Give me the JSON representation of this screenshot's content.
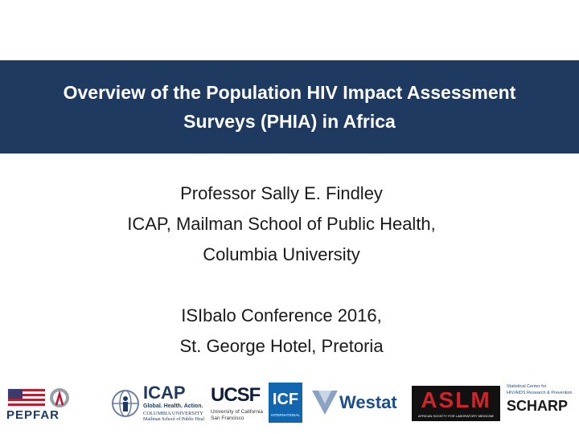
{
  "slide": {
    "title": [
      "Overview of the Population HIV Impact Assessment",
      "Surveys (PHIA) in Africa"
    ],
    "presenter": "Professor Sally E. Findley",
    "affiliation_1": "ICAP, Mailman School of Public Health,",
    "affiliation_2": "Columbia University",
    "event": "ISIbalo Conference 2016,",
    "venue": "St. George Hotel, Pretoria"
  },
  "logos": {
    "pepfar": "PEPFAR",
    "icap": {
      "name": "ICAP",
      "tagline": "Global. Health. Action.",
      "org": "COLUMBIA UNIVERSITY",
      "school": "Mailman School of Public Heal"
    },
    "ucsf": {
      "name": "UCSF",
      "line1": "University of California",
      "line2": "San Francisco"
    },
    "icf": {
      "name": "ICF",
      "sub": "INTERNATIONAL"
    },
    "westat": "Westat",
    "aslm": {
      "name": "ASLM",
      "sub": "AFRICAN SOCIETY FOR LABORATORY MEDICINE"
    },
    "scharp": {
      "name": "SCHARP",
      "line1": "Statistical Center for",
      "line2": "HIV/AIDS Research & Prevention"
    }
  },
  "colors": {
    "title_band": "#1f3a60",
    "title_text": "#ffffff",
    "body_text": "#1a1a1a",
    "aslm_red": "#d2232a",
    "westat_blue": "#1b4f8a",
    "icf_blue": "#1266b0"
  }
}
